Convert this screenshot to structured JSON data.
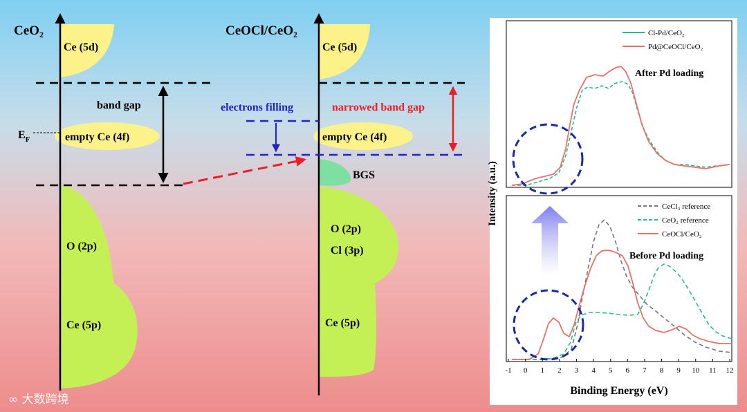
{
  "left_diagram": {
    "title_main": "CeO",
    "title_sub": "2",
    "band_5d": "Ce (5d)",
    "band_gap_label": "band gap",
    "fermi_main": "E",
    "fermi_sub": "F",
    "band_4f": "empty Ce (4f)",
    "band_2p": "O (2p)",
    "band_5p": "Ce (5p)"
  },
  "right_diagram": {
    "title": "CeOCl/CeO₂",
    "band_5d": "Ce (5d)",
    "electrons_label": "electrons filling",
    "narrowed_label": "narrowed band gap",
    "band_4f": "empty Ce (4f)",
    "bgs_label": "BGS",
    "band_2p": "O (2p)",
    "band_3p": "Cl (3p)",
    "band_5p": "Ce (5p)"
  },
  "spectra": {
    "y_label": "Intensity (a.u.)",
    "x_label": "Binding Energy (eV)",
    "x_ticks": [
      "-1",
      "0",
      "1",
      "2",
      "3",
      "4",
      "5",
      "6",
      "7",
      "8",
      "9",
      "10",
      "11",
      "12"
    ],
    "top_panel": {
      "title": "After Pd loading",
      "legend": [
        "Cl-Pd/CeO₂",
        "Pd@CeOCl/CeO₂"
      ]
    },
    "bottom_panel": {
      "title": "Before Pd loading",
      "legend": [
        "CeCl₃ reference",
        "CeO₂ reference",
        "CeOCl/CeO₂"
      ]
    }
  },
  "colors": {
    "band_yellow": "#fbf38a",
    "band_green": "#c5f055",
    "bgs_green": "#7ee0a0",
    "red_arrow": "#ee1c24",
    "blue_text": "#2222cc",
    "teal_series": "#1fbf8a",
    "red_series": "#e8706a",
    "gray_series": "#777777"
  },
  "watermark": "大数跨境"
}
